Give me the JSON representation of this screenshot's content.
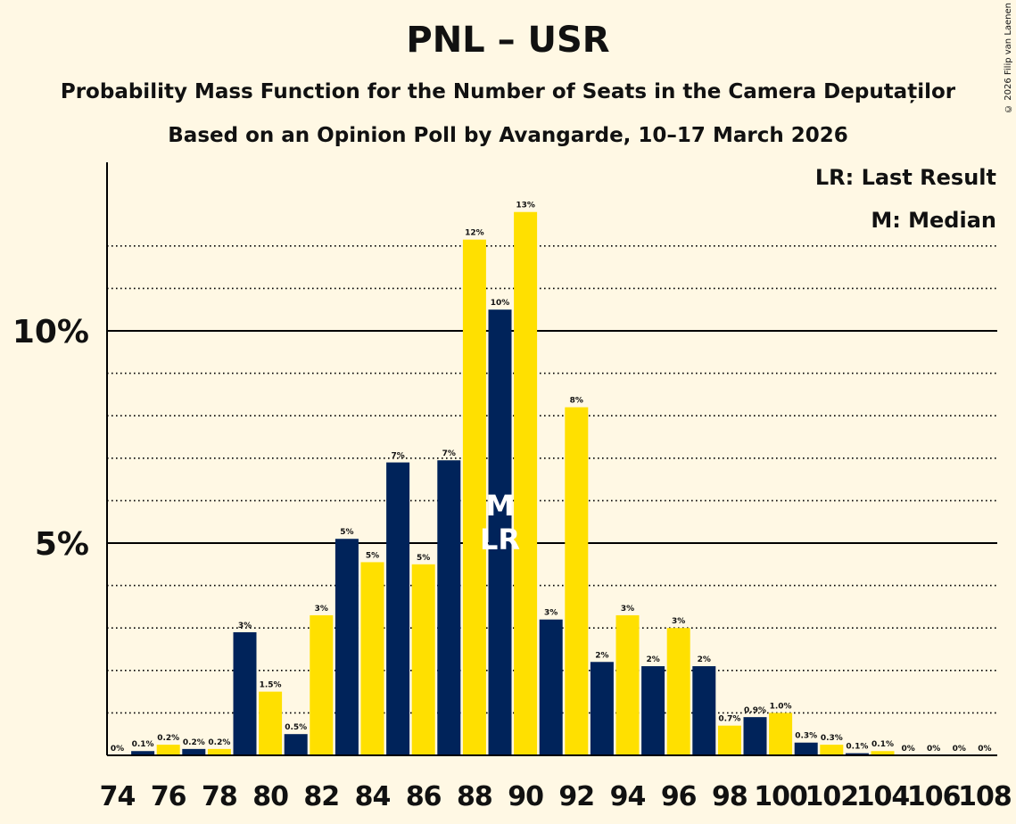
{
  "title": "PNL – USR",
  "subtitle1": "Probability Mass Function for the Number of Seats in the Camera Deputaților",
  "subtitle2": "Based on an Opinion Poll by Avangarde, 10–17 March 2026",
  "copyright": "© 2026 Filip van Laenen",
  "legend": {
    "last_result": "LR: Last Result",
    "median": "M: Median"
  },
  "colors": {
    "navy": "#00235a",
    "yellow": "#ffe000",
    "background": "#fff8e4"
  },
  "chart_data": {
    "type": "bar",
    "x": [
      74,
      75,
      76,
      77,
      78,
      79,
      80,
      81,
      82,
      83,
      84,
      85,
      86,
      87,
      88,
      89,
      90,
      91,
      92,
      93,
      94,
      95,
      96,
      97,
      98,
      99,
      100,
      101,
      102,
      103,
      104,
      105,
      106,
      107,
      108
    ],
    "values": [
      0,
      0.1,
      0.25,
      0.15,
      0.15,
      2.9,
      1.5,
      0.5,
      3.3,
      5.1,
      4.55,
      6.9,
      4.5,
      6.95,
      12.15,
      10.5,
      12.8,
      3.2,
      8.2,
      2.2,
      3.3,
      2.1,
      3.0,
      2.1,
      0.7,
      0.9,
      1.0,
      0.3,
      0.25,
      0.05,
      0.1,
      0,
      0,
      0,
      0
    ],
    "labels": [
      "0%",
      "0.1%",
      "0.2%",
      "0.2%",
      "0.2%",
      "3%",
      "1.5%",
      "0.5%",
      "3%",
      "5%",
      "5%",
      "7%",
      "5%",
      "7%",
      "12%",
      "10%",
      "13%",
      "3%",
      "8%",
      "2%",
      "3%",
      "2%",
      "3%",
      "2%",
      "0.7%",
      "0.9%",
      "1.0%",
      "0.3%",
      "0.3%",
      "0.1%",
      "0.1%",
      "0%",
      "0%",
      "0%",
      "0%"
    ],
    "x_tick_labels": [
      "74",
      "76",
      "78",
      "80",
      "82",
      "84",
      "86",
      "88",
      "90",
      "92",
      "94",
      "96",
      "98",
      "100",
      "102",
      "104",
      "106",
      "108"
    ],
    "y_ticks": [
      5,
      10
    ],
    "y_tick_labels": [
      "5%",
      "10%"
    ],
    "ylim": [
      0,
      14
    ],
    "median": 89,
    "last_result": 89,
    "median_label": "M",
    "last_result_label": "LR"
  }
}
